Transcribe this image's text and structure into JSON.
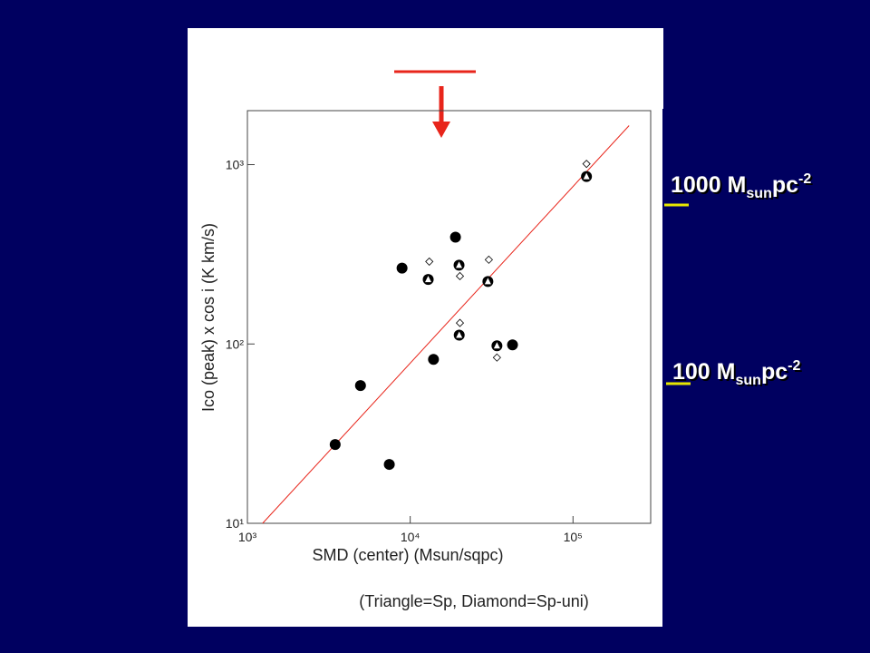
{
  "chart_data": {
    "type": "scatter",
    "x_label": "SMD (center) (Msun/sqpc)",
    "y_label": "Ico (peak) x cos i (K km/s)",
    "note": "(Triangle=Sp, Diamond=Sp-uni)",
    "xscale": "log",
    "yscale": "log",
    "xlim": [
      1000,
      300000
    ],
    "ylim": [
      10,
      2000
    ],
    "xticks": [
      {
        "value": 1000,
        "label": "10³"
      },
      {
        "value": 10000,
        "label": "10⁴"
      },
      {
        "value": 100000,
        "label": "10⁵"
      }
    ],
    "yticks": [
      {
        "value": 10,
        "label": "10¹"
      },
      {
        "value": 100,
        "label": "10²"
      },
      {
        "value": 1000,
        "label": "10³"
      }
    ],
    "series": [
      {
        "marker": "line",
        "color": "#e8251b",
        "x": [
          1240,
          221000
        ],
        "values": [
          10,
          1650
        ]
      },
      {
        "marker": "circle",
        "color": "#000000",
        "x": [
          3460,
          4950,
          7440,
          8910,
          12900,
          13900,
          18970,
          19950,
          20000,
          30000,
          34100,
          42500,
          121000
        ],
        "values": [
          27.5,
          58.6,
          21.3,
          265,
          229,
          82,
          394,
          275,
          112,
          223,
          97.7,
          98.9,
          859
        ]
      },
      {
        "marker": "triangle",
        "color": "#ffffff",
        "x": [
          12900,
          19950,
          20000,
          30000,
          34100,
          121000
        ],
        "values": [
          229,
          275,
          112,
          223,
          97.7,
          859
        ]
      },
      {
        "marker": "diamond",
        "color": "#ffffff",
        "x": [
          13100,
          20200,
          20200,
          30400,
          34100,
          121000
        ],
        "values": [
          288,
          239,
          131,
          295,
          84,
          1010
        ]
      }
    ]
  },
  "annotations": [
    {
      "text": "1000 M",
      "sub": "sun",
      "text2": "pc",
      "sup": "-2"
    },
    {
      "text": "100 M",
      "sub": "sun",
      "text2": "pc",
      "sup": "-2"
    }
  ]
}
